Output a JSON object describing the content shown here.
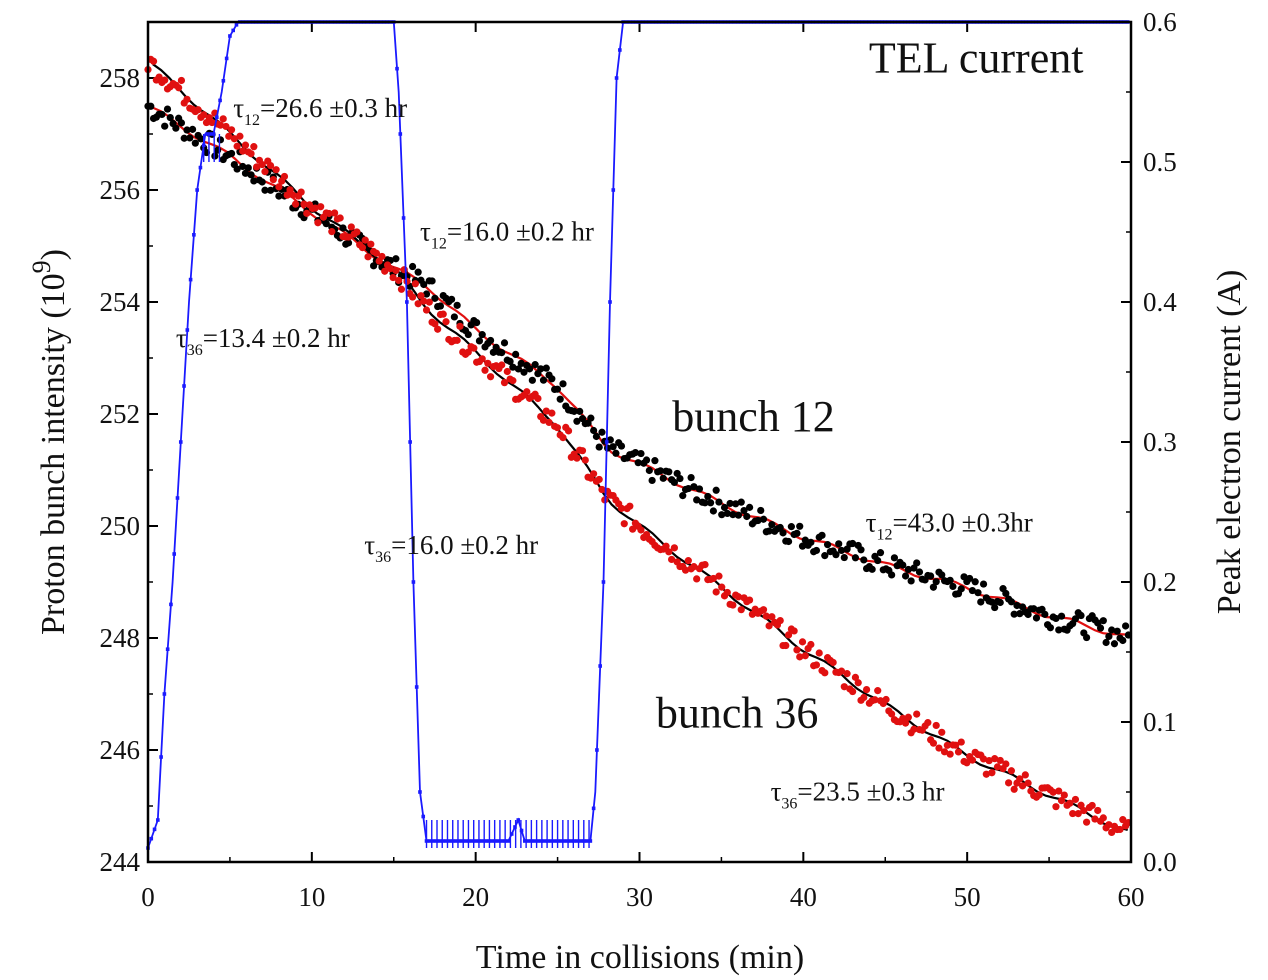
{
  "chart_data": {
    "type": "scatter",
    "xlabel": "Time in collisions (min)",
    "ylabel_left": "Proton bunch intensity (10",
    "ylabel_left_sup": "9",
    "ylabel_left_close": ")",
    "ylabel_right": "Peak electron current (A)",
    "xlim": [
      0,
      60
    ],
    "ylim_left": [
      244,
      259
    ],
    "ylim_right": [
      0,
      0.6
    ],
    "x_ticks": [
      0,
      10,
      20,
      30,
      40,
      50,
      60
    ],
    "x_tick_labels": [
      "0",
      "10",
      "20",
      "30",
      "40",
      "50",
      "60"
    ],
    "y_left_ticks": [
      244,
      246,
      248,
      250,
      252,
      254,
      256,
      258
    ],
    "y_left_tick_labels": [
      "244",
      "246",
      "248",
      "250",
      "252",
      "254",
      "256",
      "258"
    ],
    "y_right_ticks": [
      0,
      0.1,
      0.2,
      0.3,
      0.4,
      0.5,
      0.6
    ],
    "y_right_tick_labels": [
      "0.0",
      "0.1",
      "0.2",
      "0.3",
      "0.4",
      "0.5",
      "0.6"
    ],
    "grid": false,
    "series": [
      {
        "name": "bunch 12",
        "axis": "left",
        "color": "#000000",
        "fit_color": "#e01010",
        "fit": [
          [
            0,
            257.5
          ],
          [
            5,
            256.6
          ],
          [
            10,
            255.6
          ],
          [
            15,
            254.6
          ],
          [
            17,
            254.3
          ],
          [
            20,
            253.5
          ],
          [
            25,
            252.5
          ],
          [
            28,
            251.4
          ],
          [
            30,
            251.1
          ],
          [
            35,
            250.4
          ],
          [
            40,
            249.8
          ],
          [
            45,
            249.3
          ],
          [
            50,
            248.9
          ],
          [
            55,
            248.4
          ],
          [
            60,
            248.0
          ]
        ]
      },
      {
        "name": "bunch 36",
        "axis": "left",
        "color": "#e01010",
        "fit_color": "#000000",
        "fit": [
          [
            0,
            258.3
          ],
          [
            5,
            257.0
          ],
          [
            10,
            255.7
          ],
          [
            15,
            254.6
          ],
          [
            17,
            253.9
          ],
          [
            20,
            253.1
          ],
          [
            25,
            251.8
          ],
          [
            28,
            250.5
          ],
          [
            30,
            250.0
          ],
          [
            35,
            248.9
          ],
          [
            40,
            247.8
          ],
          [
            45,
            246.8
          ],
          [
            50,
            245.9
          ],
          [
            55,
            245.2
          ],
          [
            60,
            244.5
          ]
        ]
      },
      {
        "name": "TEL current",
        "axis": "right",
        "color": "#1a1aff",
        "x": [
          0,
          0.3,
          0.6,
          1,
          1.5,
          2,
          2.5,
          3,
          3.5,
          4,
          4.5,
          5,
          5.5,
          15,
          15.3,
          15.8,
          16.2,
          16.6,
          17,
          18,
          20,
          22,
          22.6,
          23,
          25,
          27,
          27.3,
          27.8,
          28.2,
          28.6,
          29,
          35,
          40,
          50,
          60
        ],
        "values": [
          0.01,
          0.02,
          0.03,
          0.12,
          0.2,
          0.3,
          0.4,
          0.48,
          0.52,
          0.52,
          0.55,
          0.59,
          0.6,
          0.6,
          0.55,
          0.4,
          0.2,
          0.05,
          0.015,
          0.015,
          0.015,
          0.015,
          0.03,
          0.015,
          0.015,
          0.015,
          0.05,
          0.2,
          0.4,
          0.56,
          0.6,
          0.6,
          0.6,
          0.6,
          0.6
        ]
      }
    ],
    "annotations": [
      {
        "id": "tel-current",
        "text": "TEL current",
        "x": 44,
        "y": 258.1
      },
      {
        "id": "bunch-12",
        "text": "bunch 12",
        "x": 32,
        "y": 251.7
      },
      {
        "id": "bunch-36",
        "text": "bunch 36",
        "x": 31,
        "y": 246.4
      },
      {
        "id": "tau12-a",
        "sym": "τ",
        "sub": "12",
        "text": "=26.6 ±0.3 hr",
        "x": 5.2,
        "y": 257.3
      },
      {
        "id": "tau12-b",
        "sym": "τ",
        "sub": "12",
        "text": "=16.0 ±0.2 hr",
        "x": 16.6,
        "y": 255.1
      },
      {
        "id": "tau36-a",
        "sym": "τ",
        "sub": "36",
        "text": "=13.4 ±0.2 hr",
        "x": 1.7,
        "y": 253.2
      },
      {
        "id": "tau36-b",
        "sym": "τ",
        "sub": "36",
        "text": "=16.0 ±0.2 hr",
        "x": 13.2,
        "y": 249.5
      },
      {
        "id": "tau12-c",
        "sym": "τ",
        "sub": "12",
        "text": "=43.0 ±0.3hr",
        "x": 43.8,
        "y": 249.9
      },
      {
        "id": "tau36-c",
        "sym": "τ",
        "sub": "36",
        "text": "=23.5 ±0.3 hr",
        "x": 38,
        "y": 245.1
      }
    ]
  }
}
